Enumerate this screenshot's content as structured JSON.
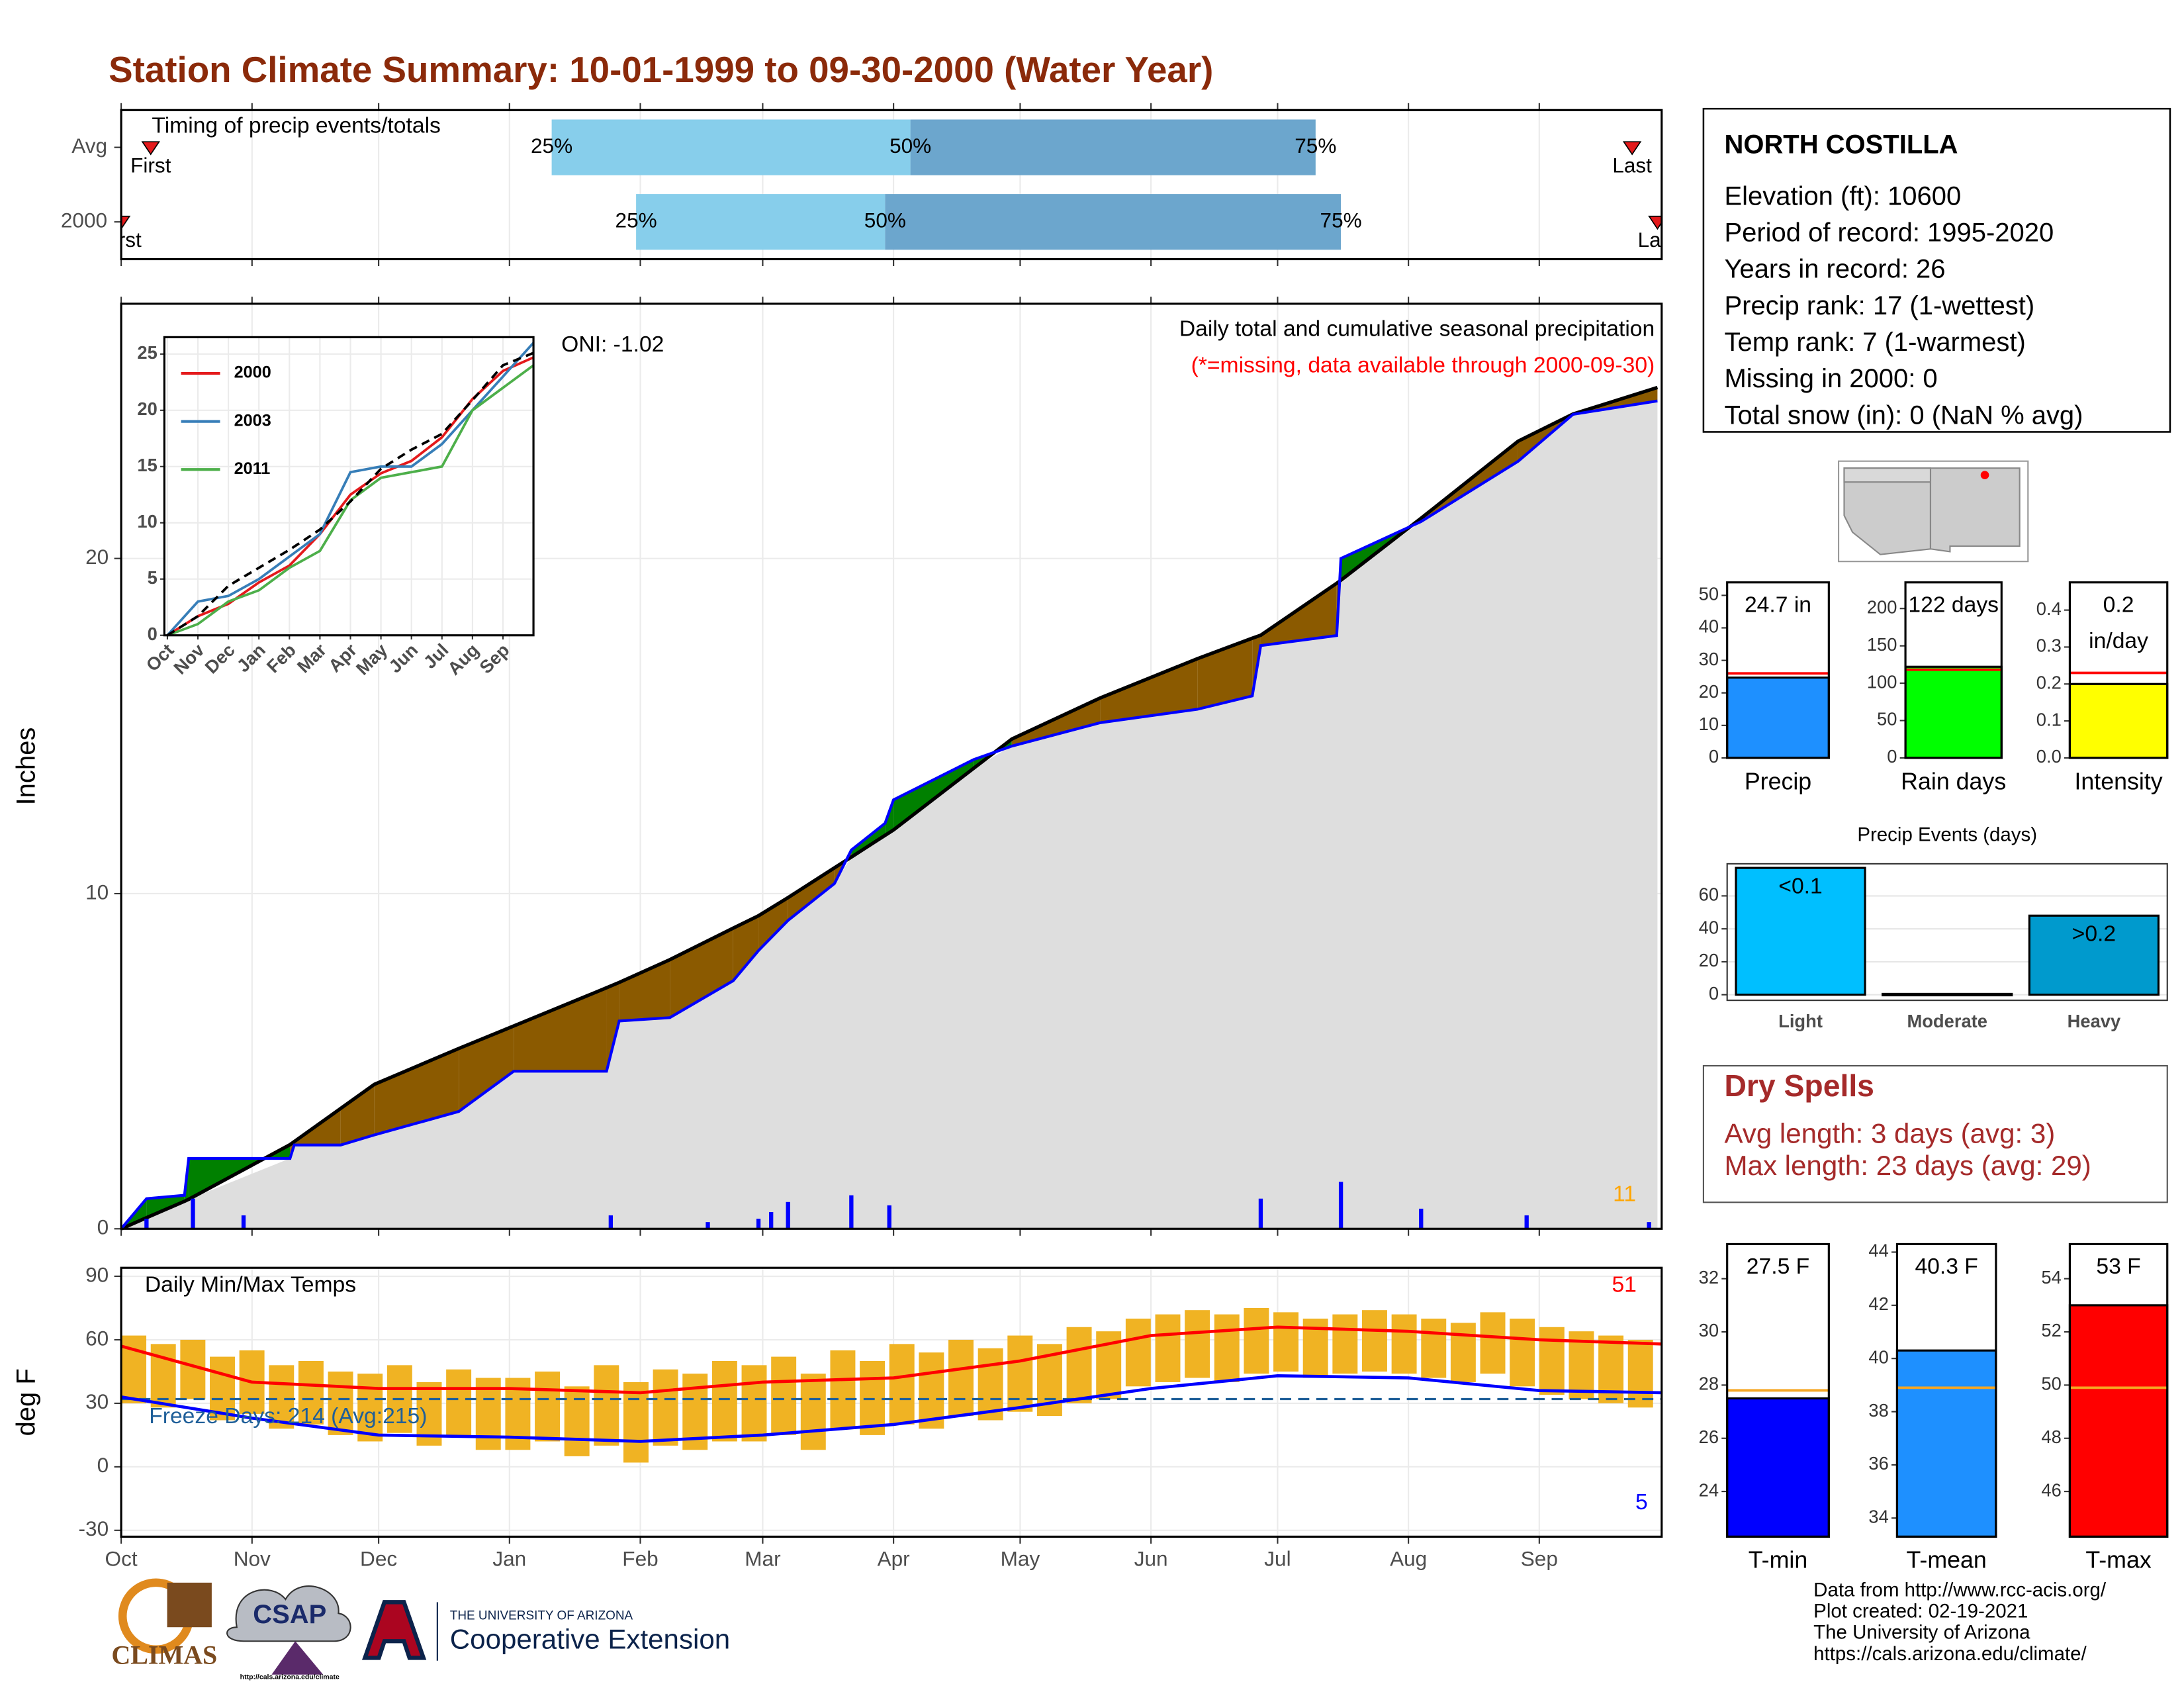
{
  "title": "Station Climate Summary: 10-01-1999 to 09-30-2000 (Water Year)",
  "chart_data": [
    {
      "type": "timing",
      "title": "Timing of precip events/totals",
      "categories": [
        "Avg",
        "2000"
      ],
      "first": [
        7,
        0
      ],
      "q25": [
        102,
        122
      ],
      "q50": [
        187,
        181
      ],
      "q75": [
        283,
        289
      ],
      "last": [
        358,
        364
      ],
      "marker_labels": {
        "first": "First",
        "q25": "25%",
        "q50": "50%",
        "q75": "75%",
        "last": "Last"
      },
      "colors": {
        "lower": "#87ceeb",
        "upper": "#6ca6cd",
        "marker": "#e41a1c"
      },
      "xlim": [
        0,
        365
      ]
    },
    {
      "type": "area",
      "ylabel": "Inches",
      "annotation": "Daily total and cumulative seasonal precipitation",
      "note": "(*=missing, data available through 2000-09-30)",
      "oni": "ONI: -1.02",
      "event_count": 11,
      "x": [
        0,
        6,
        15,
        16,
        40,
        41,
        52,
        60,
        80,
        93,
        115,
        118,
        130,
        145,
        151,
        158,
        169,
        173,
        181,
        183,
        202,
        211,
        232,
        255,
        268,
        270,
        288,
        289,
        308,
        331,
        344,
        364
      ],
      "observed": [
        0,
        0.9,
        1.0,
        2.1,
        2.1,
        2.5,
        2.5,
        2.8,
        3.5,
        4.7,
        4.7,
        6.2,
        6.3,
        7.4,
        8.3,
        9.2,
        10.3,
        11.3,
        12.1,
        12.8,
        14.0,
        14.4,
        15.1,
        15.5,
        15.9,
        17.4,
        17.7,
        20.0,
        21.1,
        22.9,
        24.3,
        24.7
      ],
      "average": [
        0,
        0.33,
        0.82,
        0.88,
        2.51,
        2.6,
        3.59,
        4.31,
        5.38,
        6.05,
        7.19,
        7.35,
        8.03,
        8.97,
        9.34,
        9.88,
        10.77,
        11.09,
        11.74,
        11.9,
        13.74,
        14.61,
        15.84,
        17.01,
        17.62,
        17.71,
        19.26,
        19.35,
        21.2,
        23.5,
        24.31,
        25.1
      ],
      "daily_x": [
        6,
        17,
        29,
        116,
        139,
        151,
        154,
        158,
        173,
        182,
        270,
        289,
        308,
        333,
        362
      ],
      "daily_values": [
        0.3,
        0.9,
        0.4,
        0.4,
        0.2,
        0.3,
        0.5,
        0.8,
        1.0,
        0.7,
        0.9,
        1.4,
        0.6,
        0.4,
        0.2
      ],
      "colors": {
        "observed": "#0000ff",
        "average": "#000000",
        "above": "#008000",
        "below": "#8b5a00",
        "base": "#dedede",
        "daily": "#0000ff",
        "count": "#ffa500",
        "note": "#ff0000"
      },
      "xlim": [
        0,
        365
      ],
      "ylim": [
        0,
        27.6
      ],
      "yticks": [
        0,
        10,
        20
      ],
      "grid": true
    },
    {
      "type": "line",
      "x": [
        0,
        1,
        2,
        3,
        4,
        5,
        6,
        7,
        8,
        9,
        10,
        11,
        12
      ],
      "series": [
        {
          "name": "2000",
          "color": "#e41a1c",
          "values": [
            0,
            1.7,
            2.8,
            4.7,
            6.2,
            9.0,
            12.5,
            14.4,
            15.5,
            17.6,
            21,
            23.5,
            24.7
          ]
        },
        {
          "name": "2003",
          "color": "#377eb8",
          "values": [
            0,
            3,
            3.5,
            5,
            7,
            9,
            14.5,
            15,
            15,
            17,
            20,
            23,
            26
          ]
        },
        {
          "name": "2011",
          "color": "#4daf4a",
          "values": [
            0,
            1,
            3,
            4,
            6,
            7.5,
            12,
            14,
            14.5,
            15,
            20,
            22,
            24
          ]
        }
      ],
      "avg_values": [
        0,
        1.7,
        4.4,
        6,
        7.6,
        9.4,
        11.9,
        14.8,
        16.5,
        17.9,
        20.9,
        24,
        25.1
      ],
      "xlim": [
        -0.1,
        12
      ],
      "ylim": [
        0,
        26.5
      ],
      "yticks": [
        0,
        5,
        10,
        15,
        20,
        25
      ],
      "xticks": [
        {
          "value": 0,
          "label": "Oct"
        },
        {
          "value": 1,
          "label": "Nov"
        },
        {
          "value": 2,
          "label": "Dec"
        },
        {
          "value": 3,
          "label": "Jan"
        },
        {
          "value": 4,
          "label": "Feb"
        },
        {
          "value": 5,
          "label": "Mar"
        },
        {
          "value": 6,
          "label": "Apr"
        },
        {
          "value": 7,
          "label": "May"
        },
        {
          "value": 8,
          "label": "Jun"
        },
        {
          "value": 9,
          "label": "Jul"
        },
        {
          "value": 10,
          "label": "Aug"
        },
        {
          "value": 11,
          "label": "Sep"
        }
      ],
      "grid": true
    },
    {
      "type": "range",
      "title": "Daily Min/Max Temps",
      "ylabel": "deg F",
      "x": [
        0,
        7,
        14,
        21,
        28,
        35,
        42,
        49,
        56,
        63,
        70,
        77,
        84,
        91,
        98,
        105,
        112,
        119,
        126,
        133,
        140,
        147,
        154,
        161,
        168,
        175,
        182,
        189,
        196,
        203,
        210,
        217,
        224,
        231,
        238,
        245,
        252,
        259,
        266,
        273,
        280,
        287,
        294,
        301,
        308,
        315,
        322,
        329,
        336,
        343,
        350,
        357
      ],
      "max": [
        62,
        58,
        60,
        52,
        55,
        48,
        50,
        45,
        44,
        48,
        40,
        46,
        42,
        42,
        45,
        38,
        48,
        40,
        46,
        44,
        50,
        48,
        52,
        44,
        55,
        50,
        58,
        54,
        60,
        56,
        62,
        58,
        66,
        64,
        70,
        72,
        74,
        72,
        75,
        73,
        70,
        72,
        74,
        72,
        70,
        68,
        73,
        70,
        66,
        64,
        62,
        60
      ],
      "min": [
        30,
        28,
        32,
        22,
        25,
        18,
        20,
        15,
        12,
        16,
        10,
        14,
        8,
        8,
        12,
        5,
        10,
        2,
        10,
        8,
        12,
        12,
        15,
        8,
        18,
        15,
        20,
        18,
        24,
        22,
        26,
        24,
        30,
        32,
        38,
        40,
        42,
        40,
        44,
        45,
        42,
        44,
        45,
        44,
        42,
        40,
        44,
        38,
        34,
        32,
        30,
        28
      ],
      "avg_x": [
        0,
        31,
        61,
        92,
        123,
        152,
        183,
        213,
        244,
        274,
        305,
        336,
        365
      ],
      "avg_max": [
        57,
        40,
        37,
        37,
        35,
        40,
        42,
        50,
        62,
        66,
        64,
        60,
        58
      ],
      "avg_min": [
        33,
        23,
        15,
        14,
        12,
        15,
        20,
        28,
        37,
        43,
        42,
        36,
        35
      ],
      "freeze": 32,
      "freeze_label": "Freeze Days: 214 (Avg:215)",
      "record_high_count": 51,
      "record_low_count": 5,
      "colors": {
        "bars": "#f0b323",
        "avg_max": "#ff0000",
        "avg_min": "#0000ff",
        "freeze": "#1f5f99"
      },
      "xlim": [
        0,
        365
      ],
      "ylim": [
        -33,
        94
      ],
      "yticks": [
        -30,
        0,
        30,
        60,
        90
      ],
      "xticks": [
        {
          "value": 0,
          "label": "Oct"
        },
        {
          "value": 31,
          "label": "Nov"
        },
        {
          "value": 61,
          "label": "Dec"
        },
        {
          "value": 92,
          "label": "Jan"
        },
        {
          "value": 123,
          "label": "Feb"
        },
        {
          "value": 152,
          "label": "Mar"
        },
        {
          "value": 183,
          "label": "Apr"
        },
        {
          "value": 213,
          "label": "May"
        },
        {
          "value": 244,
          "label": "Jun"
        },
        {
          "value": 274,
          "label": "Jul"
        },
        {
          "value": 305,
          "label": "Aug"
        },
        {
          "value": 336,
          "label": "Sep"
        }
      ],
      "grid": true
    },
    {
      "type": "summary",
      "category": "Precip",
      "value": 24.7,
      "value_label": [
        "24.7 in"
      ],
      "avg": 26,
      "color": "#1e90ff",
      "avg_color": "#ff0000",
      "ylim": [
        0,
        54
      ],
      "yticks": [
        0,
        10,
        20,
        30,
        40,
        50
      ]
    },
    {
      "type": "summary",
      "category": "Rain days",
      "value": 122,
      "value_label": [
        "122 days"
      ],
      "avg": 118,
      "color": "#00ff00",
      "avg_color": "#ff0000",
      "ylim": [
        0,
        235
      ],
      "yticks": [
        0,
        50,
        100,
        150,
        200
      ]
    },
    {
      "type": "summary",
      "category": "Intensity",
      "value": 0.2,
      "value_label": [
        "0.2",
        "in/day"
      ],
      "avg": 0.23,
      "color": "#ffff00",
      "avg_color": "#ff0000",
      "ylim": [
        0,
        0.475
      ],
      "yticks": [
        {
          "value": 0,
          "label": "0.0"
        },
        {
          "value": 0.1,
          "label": "0.1"
        },
        {
          "value": 0.2,
          "label": "0.2"
        },
        {
          "value": 0.3,
          "label": "0.3"
        },
        {
          "value": 0.4,
          "label": "0.4"
        }
      ]
    },
    {
      "type": "bar",
      "title": "Precip Events (days)",
      "categories": [
        "Light",
        "Moderate",
        "Heavy"
      ],
      "values": [
        77,
        0.5,
        48
      ],
      "bar_labels": [
        "<0.1",
        null,
        ">0.2"
      ],
      "colors": [
        "#00bfff",
        "#1c86ee",
        "#009acd"
      ],
      "ylim": [
        -3.4,
        79.5
      ],
      "yticks": [
        0,
        20,
        40,
        60
      ],
      "grid": true
    },
    {
      "type": "summary",
      "category": "T-min",
      "value": 27.5,
      "value_label": [
        "27.5 F"
      ],
      "avg": 27.8,
      "color": "#0000ff",
      "avg_color": "#f5a623",
      "ylim": [
        22.3,
        33.3
      ],
      "yticks": [
        24,
        26,
        28,
        30,
        32
      ]
    },
    {
      "type": "summary",
      "category": "T-mean",
      "value": 40.3,
      "value_label": [
        "40.3 F"
      ],
      "avg": 38.9,
      "color": "#1e90ff",
      "avg_color": "#f5a623",
      "ylim": [
        33.3,
        44.3
      ],
      "yticks": [
        34,
        36,
        38,
        40,
        42,
        44
      ]
    },
    {
      "type": "summary",
      "category": "T-max",
      "value": 53,
      "value_label": [
        "53 F"
      ],
      "avg": 49.9,
      "color": "#ff0000",
      "avg_color": "#f5a623",
      "ylim": [
        44.3,
        55.3
      ],
      "yticks": [
        46,
        48,
        50,
        52,
        54
      ]
    }
  ],
  "station": {
    "name": "NORTH COSTILLA",
    "lines": [
      "Elevation (ft): 10600",
      "Period of record: 1995-2020",
      "Years in record: 26",
      "Precip rank: 17 (1-wettest)",
      "Temp rank: 7 (1-warmest)",
      "Missing in 2000: 0",
      "Total snow (in): 0 (NaN % avg)"
    ]
  },
  "dry_spells": {
    "title": "Dry Spells",
    "lines": [
      "Avg length: 3 days (avg: 3)",
      "Max length: 23 days (avg: 29)"
    ]
  },
  "logos": {
    "climas": "CLIMAS",
    "csap": "CSAP",
    "csap_url": "http://cals.arizona.edu/climate",
    "university": "THE UNIVERSITY OF ARIZONA",
    "extension": "Cooperative Extension"
  },
  "credits": [
    "Data from http://www.rcc-acis.org/",
    "Plot created: 02-19-2021",
    "The University of Arizona",
    "https://cals.arizona.edu/climate/"
  ]
}
